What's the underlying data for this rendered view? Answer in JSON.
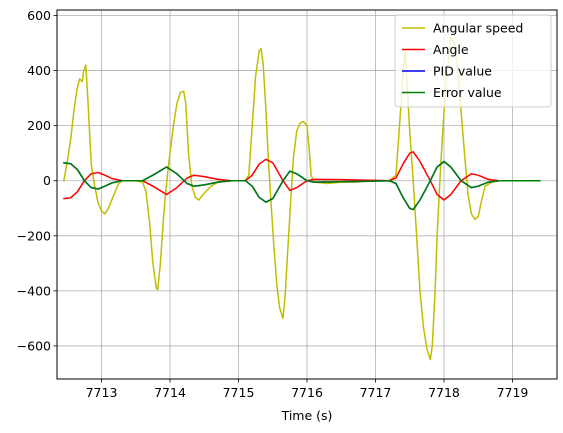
{
  "chart_data": {
    "type": "line",
    "title": "",
    "xlabel": "Time (s)",
    "ylabel": "",
    "xlim": [
      7712.35,
      7719.65
    ],
    "ylim": [
      -720,
      620
    ],
    "x_ticks": [
      7713,
      7714,
      7715,
      7716,
      7717,
      7718,
      7719
    ],
    "y_ticks": [
      -600,
      -400,
      -200,
      0,
      200,
      400,
      600
    ],
    "grid": true,
    "legend_position": "top-right",
    "series": [
      {
        "name": "Angular speed",
        "color": "#bfbf00",
        "points": [
          [
            7712.45,
            0
          ],
          [
            7712.5,
            70
          ],
          [
            7712.55,
            150
          ],
          [
            7712.6,
            260
          ],
          [
            7712.64,
            330
          ],
          [
            7712.68,
            370
          ],
          [
            7712.72,
            360
          ],
          [
            7712.74,
            400
          ],
          [
            7712.77,
            420
          ],
          [
            7712.8,
            300
          ],
          [
            7712.85,
            60
          ],
          [
            7712.9,
            -20
          ],
          [
            7712.95,
            -80
          ],
          [
            7713.0,
            -110
          ],
          [
            7713.05,
            -120
          ],
          [
            7713.1,
            -100
          ],
          [
            7713.15,
            -70
          ],
          [
            7713.2,
            -40
          ],
          [
            7713.25,
            -10
          ],
          [
            7713.3,
            0
          ],
          [
            7713.4,
            0
          ],
          [
            7713.5,
            0
          ],
          [
            7713.6,
            -5
          ],
          [
            7713.65,
            -40
          ],
          [
            7713.7,
            -150
          ],
          [
            7713.75,
            -300
          ],
          [
            7713.8,
            -390
          ],
          [
            7713.82,
            -395
          ],
          [
            7713.86,
            -300
          ],
          [
            7713.9,
            -150
          ],
          [
            7713.93,
            -60
          ],
          [
            7713.97,
            40
          ],
          [
            7714.0,
            100
          ],
          [
            7714.05,
            200
          ],
          [
            7714.1,
            280
          ],
          [
            7714.15,
            320
          ],
          [
            7714.2,
            325
          ],
          [
            7714.23,
            280
          ],
          [
            7714.27,
            100
          ],
          [
            7714.32,
            -20
          ],
          [
            7714.37,
            -60
          ],
          [
            7714.42,
            -70
          ],
          [
            7714.5,
            -45
          ],
          [
            7714.6,
            -20
          ],
          [
            7714.7,
            -5
          ],
          [
            7714.8,
            0
          ],
          [
            7715.0,
            0
          ],
          [
            7715.1,
            0
          ],
          [
            7715.15,
            20
          ],
          [
            7715.2,
            200
          ],
          [
            7715.25,
            380
          ],
          [
            7715.3,
            470
          ],
          [
            7715.33,
            480
          ],
          [
            7715.36,
            420
          ],
          [
            7715.4,
            260
          ],
          [
            7715.44,
            60
          ],
          [
            7715.48,
            -100
          ],
          [
            7715.52,
            -250
          ],
          [
            7715.56,
            -380
          ],
          [
            7715.6,
            -460
          ],
          [
            7715.65,
            -500
          ],
          [
            7715.68,
            -420
          ],
          [
            7715.72,
            -250
          ],
          [
            7715.76,
            -80
          ],
          [
            7715.8,
            80
          ],
          [
            7715.85,
            180
          ],
          [
            7715.9,
            210
          ],
          [
            7715.95,
            215
          ],
          [
            7716.0,
            200
          ],
          [
            7716.03,
            120
          ],
          [
            7716.06,
            20
          ],
          [
            7716.1,
            -5
          ],
          [
            7716.3,
            -10
          ],
          [
            7716.5,
            -5
          ],
          [
            7716.7,
            -5
          ],
          [
            7716.9,
            0
          ],
          [
            7717.0,
            0
          ],
          [
            7717.2,
            0
          ],
          [
            7717.3,
            20
          ],
          [
            7717.35,
            200
          ],
          [
            7717.4,
            380
          ],
          [
            7717.43,
            470
          ],
          [
            7717.46,
            360
          ],
          [
            7717.5,
            180
          ],
          [
            7717.55,
            0
          ],
          [
            7717.6,
            -200
          ],
          [
            7717.65,
            -400
          ],
          [
            7717.7,
            -530
          ],
          [
            7717.75,
            -610
          ],
          [
            7717.8,
            -650
          ],
          [
            7717.83,
            -600
          ],
          [
            7717.87,
            -400
          ],
          [
            7717.9,
            -200
          ],
          [
            7717.95,
            50
          ],
          [
            7718.0,
            250
          ],
          [
            7718.05,
            400
          ],
          [
            7718.1,
            520
          ],
          [
            7718.15,
            500
          ],
          [
            7718.2,
            400
          ],
          [
            7718.25,
            250
          ],
          [
            7718.3,
            100
          ],
          [
            7718.35,
            -50
          ],
          [
            7718.4,
            -120
          ],
          [
            7718.45,
            -140
          ],
          [
            7718.5,
            -130
          ],
          [
            7718.55,
            -70
          ],
          [
            7718.6,
            -20
          ],
          [
            7718.7,
            -5
          ],
          [
            7718.8,
            0
          ],
          [
            7719.0,
            0
          ],
          [
            7719.2,
            0
          ],
          [
            7719.4,
            0
          ]
        ]
      },
      {
        "name": "Angle",
        "color": "#ff0000",
        "points": [
          [
            7712.45,
            -65
          ],
          [
            7712.55,
            -62
          ],
          [
            7712.65,
            -40
          ],
          [
            7712.75,
            0
          ],
          [
            7712.85,
            25
          ],
          [
            7712.95,
            30
          ],
          [
            7713.05,
            20
          ],
          [
            7713.15,
            8
          ],
          [
            7713.3,
            0
          ],
          [
            7713.6,
            0
          ],
          [
            7713.75,
            -20
          ],
          [
            7713.95,
            -50
          ],
          [
            7714.1,
            -25
          ],
          [
            7714.25,
            10
          ],
          [
            7714.35,
            20
          ],
          [
            7714.5,
            15
          ],
          [
            7714.7,
            5
          ],
          [
            7714.9,
            0
          ],
          [
            7715.1,
            0
          ],
          [
            7715.2,
            20
          ],
          [
            7715.3,
            60
          ],
          [
            7715.4,
            78
          ],
          [
            7715.5,
            65
          ],
          [
            7715.65,
            0
          ],
          [
            7715.75,
            -35
          ],
          [
            7715.85,
            -25
          ],
          [
            7716.0,
            0
          ],
          [
            7716.1,
            5
          ],
          [
            7716.5,
            4
          ],
          [
            7716.9,
            2
          ],
          [
            7717.2,
            0
          ],
          [
            7717.3,
            10
          ],
          [
            7717.4,
            60
          ],
          [
            7717.5,
            100
          ],
          [
            7717.55,
            105
          ],
          [
            7717.65,
            70
          ],
          [
            7717.8,
            0
          ],
          [
            7717.9,
            -50
          ],
          [
            7718.0,
            -70
          ],
          [
            7718.1,
            -50
          ],
          [
            7718.25,
            0
          ],
          [
            7718.4,
            25
          ],
          [
            7718.5,
            20
          ],
          [
            7718.65,
            5
          ],
          [
            7718.8,
            0
          ],
          [
            7719.4,
            0
          ]
        ]
      },
      {
        "name": "PID value",
        "color": "#0000ff",
        "points": [
          [
            7712.45,
            65
          ],
          [
            7712.55,
            62
          ],
          [
            7712.65,
            40
          ],
          [
            7712.75,
            0
          ],
          [
            7712.85,
            -25
          ],
          [
            7712.95,
            -30
          ],
          [
            7713.05,
            -20
          ],
          [
            7713.15,
            -8
          ],
          [
            7713.3,
            0
          ],
          [
            7713.6,
            0
          ],
          [
            7713.75,
            20
          ],
          [
            7713.95,
            50
          ],
          [
            7714.1,
            25
          ],
          [
            7714.25,
            -10
          ],
          [
            7714.35,
            -20
          ],
          [
            7714.5,
            -15
          ],
          [
            7714.7,
            -5
          ],
          [
            7714.9,
            0
          ],
          [
            7715.1,
            0
          ],
          [
            7715.2,
            -20
          ],
          [
            7715.3,
            -60
          ],
          [
            7715.4,
            -78
          ],
          [
            7715.5,
            -65
          ],
          [
            7715.65,
            0
          ],
          [
            7715.75,
            35
          ],
          [
            7715.85,
            25
          ],
          [
            7716.0,
            0
          ],
          [
            7716.1,
            -5
          ],
          [
            7716.5,
            -4
          ],
          [
            7716.9,
            -2
          ],
          [
            7717.2,
            0
          ],
          [
            7717.3,
            -10
          ],
          [
            7717.4,
            -60
          ],
          [
            7717.5,
            -100
          ],
          [
            7717.55,
            -105
          ],
          [
            7717.65,
            -70
          ],
          [
            7717.8,
            0
          ],
          [
            7717.9,
            50
          ],
          [
            7718.0,
            70
          ],
          [
            7718.1,
            50
          ],
          [
            7718.25,
            0
          ],
          [
            7718.4,
            -25
          ],
          [
            7718.5,
            -20
          ],
          [
            7718.65,
            -5
          ],
          [
            7718.8,
            0
          ],
          [
            7719.4,
            0
          ]
        ]
      },
      {
        "name": "Error value",
        "color": "#008000",
        "points": [
          [
            7712.45,
            65
          ],
          [
            7712.55,
            62
          ],
          [
            7712.65,
            40
          ],
          [
            7712.75,
            0
          ],
          [
            7712.85,
            -25
          ],
          [
            7712.95,
            -30
          ],
          [
            7713.05,
            -20
          ],
          [
            7713.15,
            -8
          ],
          [
            7713.3,
            0
          ],
          [
            7713.6,
            0
          ],
          [
            7713.75,
            20
          ],
          [
            7713.95,
            50
          ],
          [
            7714.1,
            25
          ],
          [
            7714.25,
            -10
          ],
          [
            7714.35,
            -20
          ],
          [
            7714.5,
            -15
          ],
          [
            7714.7,
            -5
          ],
          [
            7714.9,
            0
          ],
          [
            7715.1,
            0
          ],
          [
            7715.2,
            -20
          ],
          [
            7715.3,
            -60
          ],
          [
            7715.4,
            -78
          ],
          [
            7715.5,
            -65
          ],
          [
            7715.65,
            0
          ],
          [
            7715.75,
            35
          ],
          [
            7715.85,
            25
          ],
          [
            7716.0,
            0
          ],
          [
            7716.1,
            -5
          ],
          [
            7716.5,
            -4
          ],
          [
            7716.9,
            -2
          ],
          [
            7717.2,
            0
          ],
          [
            7717.3,
            -10
          ],
          [
            7717.4,
            -60
          ],
          [
            7717.5,
            -100
          ],
          [
            7717.55,
            -105
          ],
          [
            7717.65,
            -70
          ],
          [
            7717.8,
            0
          ],
          [
            7717.9,
            50
          ],
          [
            7718.0,
            70
          ],
          [
            7718.1,
            50
          ],
          [
            7718.25,
            0
          ],
          [
            7718.4,
            -25
          ],
          [
            7718.5,
            -20
          ],
          [
            7718.65,
            -5
          ],
          [
            7718.8,
            0
          ],
          [
            7719.4,
            0
          ]
        ]
      }
    ]
  }
}
